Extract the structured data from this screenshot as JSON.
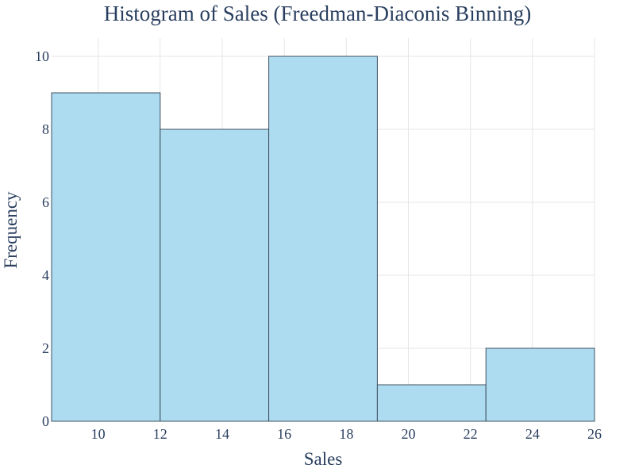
{
  "chart_data": {
    "type": "bar",
    "title": "Histogram of Sales (Freedman-Diaconis Binning)",
    "xlabel": "Sales",
    "ylabel": "Frequency",
    "bins": [
      {
        "start": 8.5,
        "end": 12,
        "value": 9
      },
      {
        "start": 12,
        "end": 15.5,
        "value": 8
      },
      {
        "start": 15.5,
        "end": 19,
        "value": 10
      },
      {
        "start": 19,
        "end": 22.5,
        "value": 1
      },
      {
        "start": 22.5,
        "end": 26,
        "value": 2
      }
    ],
    "xlim": [
      8.5,
      26
    ],
    "ylim": [
      0,
      10.5
    ],
    "x_ticks": [
      10,
      12,
      14,
      16,
      18,
      20,
      22,
      24,
      26
    ],
    "y_ticks": [
      0,
      2,
      4,
      6,
      8,
      10
    ],
    "grid": true,
    "colors": {
      "bar_fill": "#ADDCF0",
      "bar_stroke": "#3f4f5f",
      "grid": "#e6e6e6",
      "text": "#2a3f5f"
    }
  }
}
